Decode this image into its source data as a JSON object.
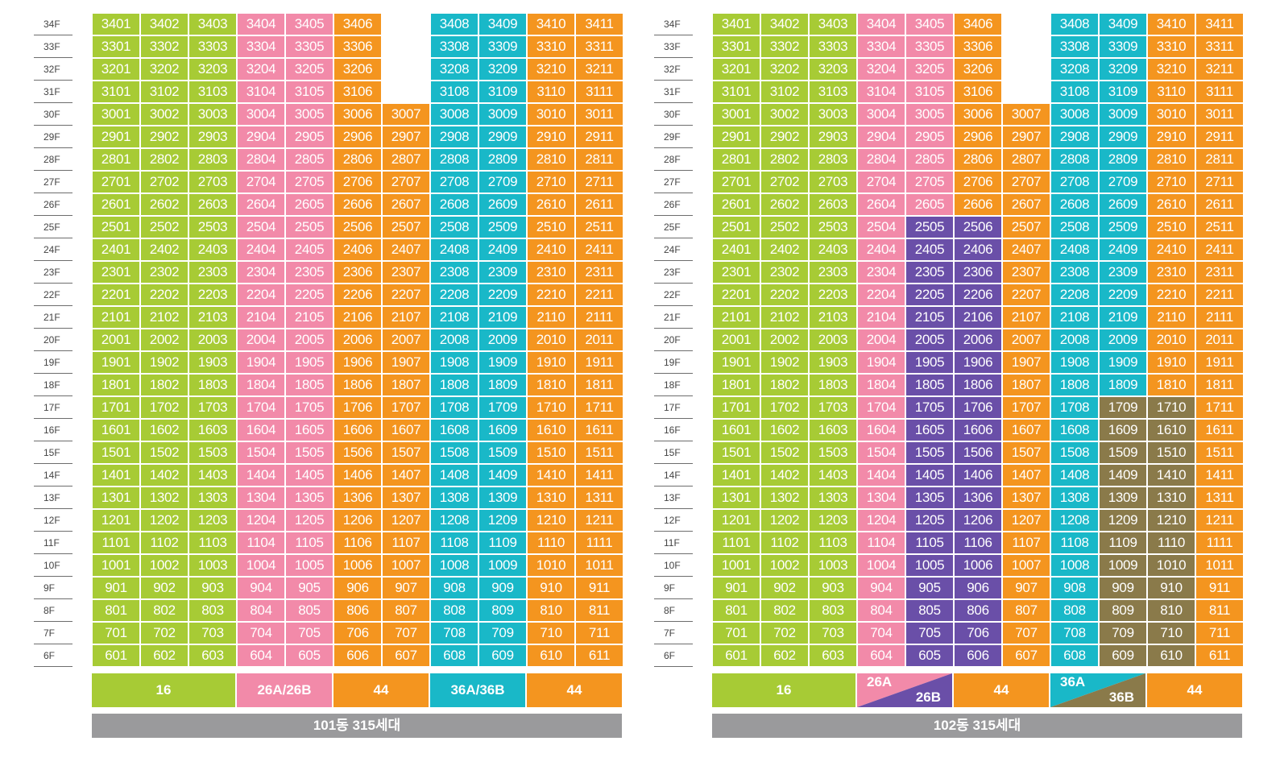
{
  "colors": {
    "green": "#a7cb35",
    "pink": "#f28aa9",
    "orange": "#f4951f",
    "cyan": "#19b8c8",
    "purple": "#6a4fa8",
    "olive": "#8a7a4a",
    "footer": "#9a9a9c"
  },
  "floors": [
    "34F",
    "33F",
    "32F",
    "31F",
    "30F",
    "29F",
    "28F",
    "27F",
    "26F",
    "25F",
    "24F",
    "23F",
    "22F",
    "21F",
    "20F",
    "19F",
    "18F",
    "17F",
    "16F",
    "15F",
    "14F",
    "13F",
    "12F",
    "11F",
    "10F",
    "9F",
    "8F",
    "7F",
    "6F"
  ],
  "buildings": [
    {
      "name": "101동 315세대",
      "column_colors": [
        "green",
        "green",
        "green",
        "pink",
        "pink",
        "orange",
        "orange",
        "cyan",
        "cyan",
        "orange",
        "orange"
      ],
      "column_overrides": [],
      "types": [
        {
          "label": "16",
          "span": 3,
          "color": "green"
        },
        {
          "label": "26A/26B",
          "span": 2,
          "color": "pink"
        },
        {
          "label": "44",
          "span": 2,
          "color": "orange"
        },
        {
          "label": "36A/36B",
          "span": 2,
          "color": "cyan"
        },
        {
          "label": "44",
          "span": 2,
          "color": "orange"
        }
      ]
    },
    {
      "name": "102동 315세대",
      "column_colors": [
        "green",
        "green",
        "green",
        "pink",
        "pink",
        "orange",
        "orange",
        "cyan",
        "cyan",
        "orange",
        "orange"
      ],
      "column_overrides": [
        {
          "columns": [
            4,
            5
          ],
          "max_floor": 25,
          "color": "purple"
        },
        {
          "columns": [
            8,
            9
          ],
          "max_floor": 17,
          "color": "olive"
        }
      ],
      "types": [
        {
          "label": "16",
          "span": 3,
          "color": "green"
        },
        {
          "label_a": "26A",
          "label_b": "26B",
          "span": 2,
          "color_a": "pink",
          "color_b": "purple",
          "split": true
        },
        {
          "label": "44",
          "span": 2,
          "color": "orange"
        },
        {
          "label_a": "36A",
          "label_b": "36B",
          "span": 2,
          "color_a": "cyan",
          "color_b": "olive",
          "split": true
        },
        {
          "label": "44",
          "span": 2,
          "color": "orange"
        }
      ]
    }
  ]
}
